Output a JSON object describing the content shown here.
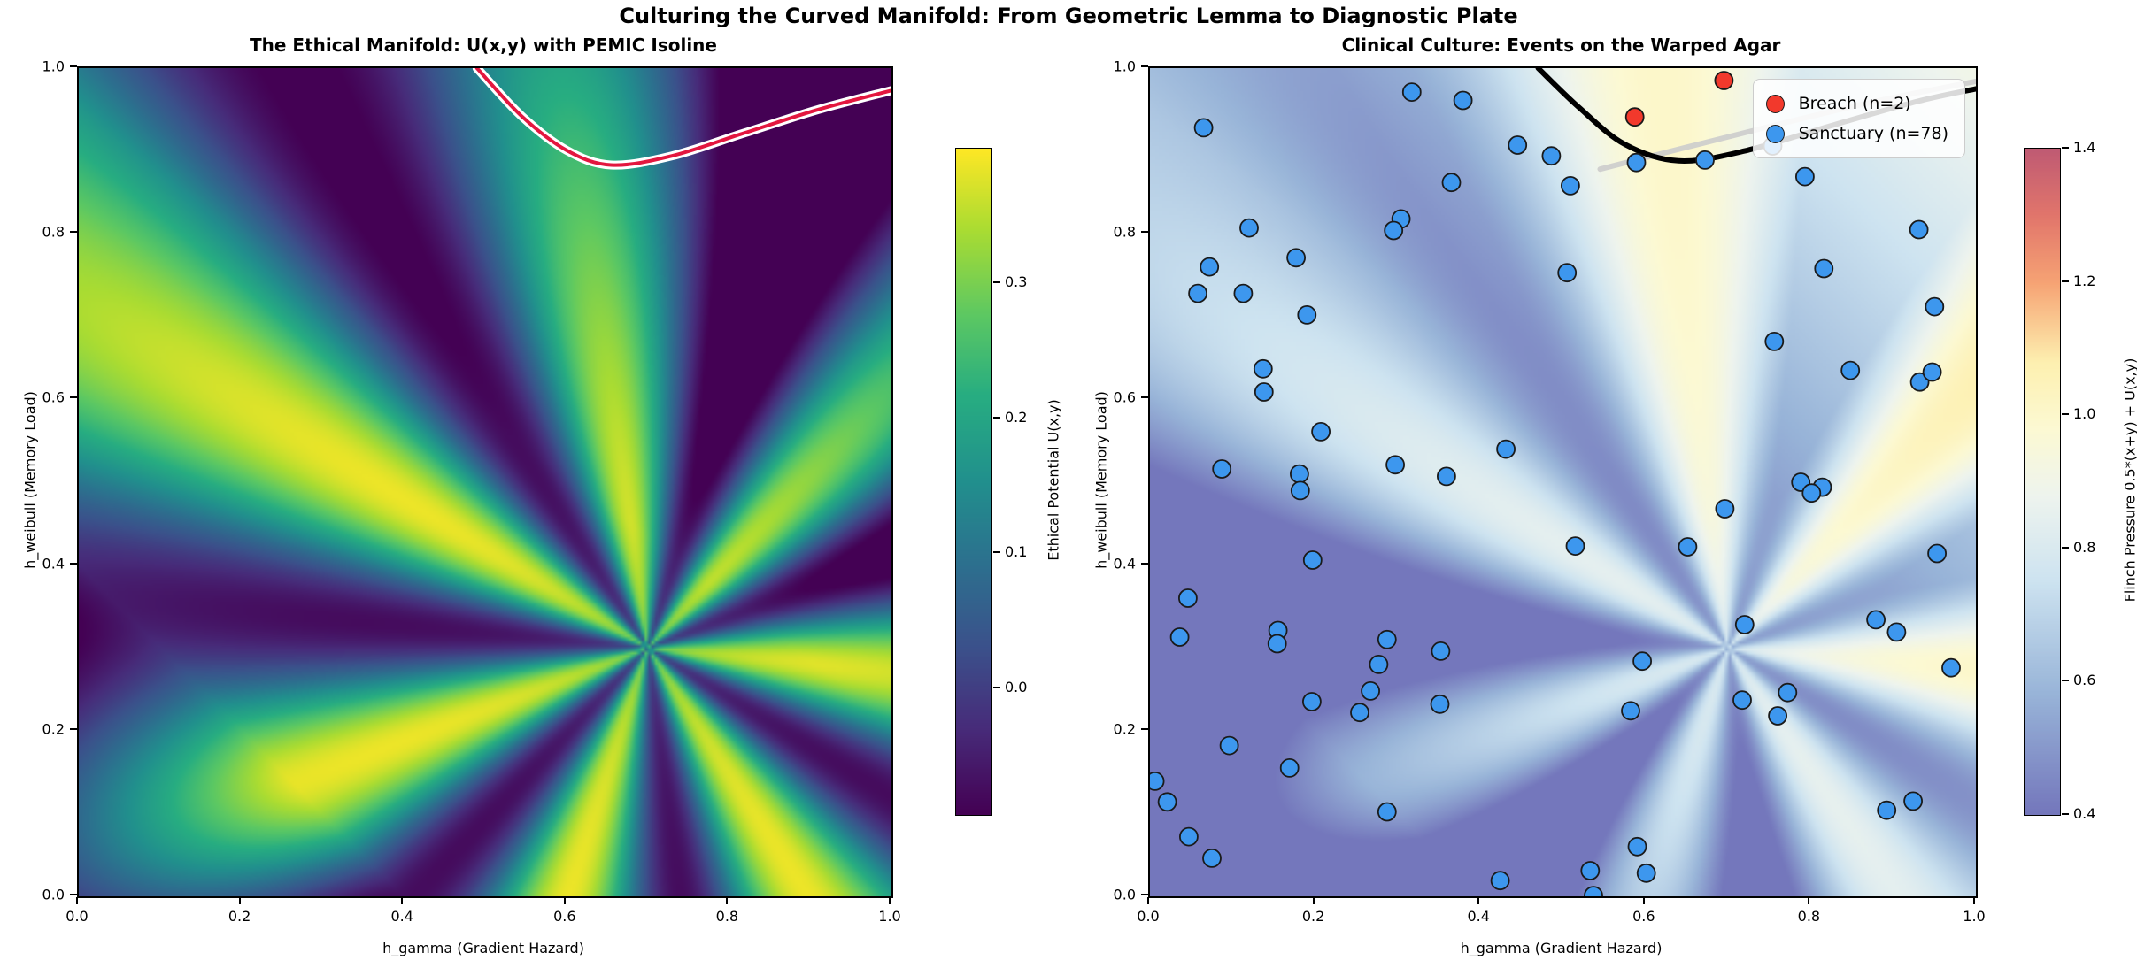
{
  "suptitle": "Culturing the Curved Manifold: From Geometric Lemma to Diagnostic Plate",
  "chart_data": [
    {
      "type": "heatmap",
      "title": "The Ethical Manifold: U(x,y) with PEMIC Isoline",
      "xlabel": "h_gamma (Gradient Hazard)",
      "ylabel": "h_weibull (Memory Load)",
      "xlim": [
        0.0,
        1.0
      ],
      "ylim": [
        0.0,
        1.0
      ],
      "xtick_values": [
        0.0,
        0.2,
        0.4,
        0.6,
        0.8,
        1.0
      ],
      "xtick_labels": [
        "0.0",
        "0.2",
        "0.4",
        "0.6",
        "0.8",
        "1.0"
      ],
      "ytick_values": [
        0.0,
        0.2,
        0.4,
        0.6,
        0.8,
        1.0
      ],
      "ytick_labels": [
        "0.0",
        "0.2",
        "0.4",
        "0.6",
        "0.8",
        "1.0"
      ],
      "grid": false,
      "colormap": "viridis",
      "colorbar": {
        "label": "Ethical Potential U(x,y)",
        "tick_values": [
          0.0,
          0.1,
          0.2,
          0.3
        ],
        "tick_labels": [
          "0.0",
          "0.1",
          "0.2",
          "0.3"
        ],
        "vmin": -0.094,
        "vmax": 0.4
      },
      "field": {
        "description": "Angular singularity U(x,y) with 7 alternating bright/dark lobes",
        "singularity_center": [
          0.7,
          0.3
        ],
        "lobes": 7,
        "phase": 0.63,
        "value_range": [
          -0.094,
          0.4
        ]
      },
      "isoline": {
        "name": "PEMIC isoline",
        "halo_color": "#ffffff",
        "line_color": "#e3173f",
        "points": [
          [
            0.49,
            1.0
          ],
          [
            0.545,
            0.942
          ],
          [
            0.6,
            0.901
          ],
          [
            0.655,
            0.883
          ],
          [
            0.73,
            0.894
          ],
          [
            0.82,
            0.922
          ],
          [
            0.91,
            0.95
          ],
          [
            1.0,
            0.973
          ]
        ]
      }
    },
    {
      "type": "heatmap+scatter",
      "title": "Clinical Culture: Events on the Warped Agar",
      "xlabel": "h_gamma (Gradient Hazard)",
      "ylabel": "h_weibull (Memory Load)",
      "xlim": [
        0.0,
        1.0
      ],
      "ylim": [
        0.0,
        1.0
      ],
      "xtick_values": [
        0.0,
        0.2,
        0.4,
        0.6,
        0.8,
        1.0
      ],
      "xtick_labels": [
        "0.0",
        "0.2",
        "0.4",
        "0.6",
        "0.8",
        "1.0"
      ],
      "ytick_values": [
        0.0,
        0.2,
        0.4,
        0.6,
        0.8,
        1.0
      ],
      "ytick_labels": [
        "0.0",
        "0.2",
        "0.4",
        "0.6",
        "0.8",
        "1.0"
      ],
      "grid": false,
      "colormap": "purple-yellow-crimson diverging",
      "colorbar": {
        "label": "Flinch Pressure 0.5*(x+y) + U(x,y)",
        "tick_values": [
          0.4,
          0.6,
          0.8,
          1.0,
          1.2,
          1.4
        ],
        "tick_labels": [
          "0.4",
          "0.6",
          "0.8",
          "1.0",
          "1.2",
          "1.4"
        ],
        "vmin": 0.4,
        "vmax": 1.4
      },
      "field": {
        "description": "Flinch pressure 0.5*(x+y) + U(x,y) on warped agar",
        "singularity_center": [
          0.7,
          0.3
        ],
        "value_range": [
          0.4,
          1.4
        ]
      },
      "contours": [
        {
          "name": "gray-isoline",
          "color": "rgba(204,204,204,0.9)",
          "width": 6,
          "points": [
            [
              0.545,
              0.878
            ],
            [
              0.72,
              0.922
            ],
            [
              0.87,
              0.958
            ],
            [
              1.0,
              0.984
            ]
          ]
        },
        {
          "name": "black-threshold-contour",
          "color": "#000000",
          "width": 6,
          "points": [
            [
              0.47,
              1.0
            ],
            [
              0.52,
              0.952
            ],
            [
              0.575,
              0.908
            ],
            [
              0.64,
              0.888
            ],
            [
              0.72,
              0.9
            ],
            [
              0.83,
              0.932
            ],
            [
              0.93,
              0.96
            ],
            [
              1.0,
              0.975
            ]
          ]
        }
      ],
      "series": [
        {
          "name": "Breach (n=2)",
          "color": "#f2392c",
          "marker": "circle",
          "count": 2,
          "points": [
            [
              0.587,
              0.941
            ],
            [
              0.695,
              0.985
            ]
          ]
        },
        {
          "name": "Sanctuary (n=78)",
          "color": "#3d97ee",
          "marker": "circle",
          "count": 78,
          "points": [
            [
              0.317,
              0.971
            ],
            [
              0.379,
              0.961
            ],
            [
              0.065,
              0.928
            ],
            [
              0.445,
              0.907
            ],
            [
              0.365,
              0.862
            ],
            [
              0.304,
              0.818
            ],
            [
              0.295,
              0.804
            ],
            [
              0.12,
              0.807
            ],
            [
              0.177,
              0.771
            ],
            [
              0.072,
              0.76
            ],
            [
              0.058,
              0.728
            ],
            [
              0.113,
              0.728
            ],
            [
              0.19,
              0.702
            ],
            [
              0.137,
              0.637
            ],
            [
              0.138,
              0.609
            ],
            [
              0.207,
              0.561
            ],
            [
              0.754,
              0.906
            ],
            [
              0.486,
              0.894
            ],
            [
              0.589,
              0.886
            ],
            [
              0.672,
              0.889
            ],
            [
              0.793,
              0.869
            ],
            [
              0.509,
              0.858
            ],
            [
              0.931,
              0.805
            ],
            [
              0.505,
              0.753
            ],
            [
              0.816,
              0.758
            ],
            [
              0.95,
              0.712
            ],
            [
              0.756,
              0.67
            ],
            [
              0.848,
              0.635
            ],
            [
              0.932,
              0.621
            ],
            [
              0.947,
              0.633
            ],
            [
              0.431,
              0.54
            ],
            [
              0.087,
              0.516
            ],
            [
              0.181,
              0.51
            ],
            [
              0.297,
              0.521
            ],
            [
              0.359,
              0.507
            ],
            [
              0.182,
              0.49
            ],
            [
              0.197,
              0.406
            ],
            [
              0.046,
              0.36
            ],
            [
              0.036,
              0.313
            ],
            [
              0.155,
              0.321
            ],
            [
              0.154,
              0.305
            ],
            [
              0.287,
              0.31
            ],
            [
              0.277,
              0.28
            ],
            [
              0.267,
              0.248
            ],
            [
              0.254,
              0.222
            ],
            [
              0.196,
              0.235
            ],
            [
              0.352,
              0.296
            ],
            [
              0.351,
              0.232
            ],
            [
              0.096,
              0.182
            ],
            [
              0.169,
              0.155
            ],
            [
              0.006,
              0.139
            ],
            [
              0.021,
              0.114
            ],
            [
              0.287,
              0.102
            ],
            [
              0.047,
              0.072
            ],
            [
              0.075,
              0.046
            ],
            [
              0.424,
              0.019
            ],
            [
              0.788,
              0.5
            ],
            [
              0.814,
              0.494
            ],
            [
              0.801,
              0.487
            ],
            [
              0.696,
              0.468
            ],
            [
              0.515,
              0.423
            ],
            [
              0.651,
              0.422
            ],
            [
              0.953,
              0.414
            ],
            [
              0.879,
              0.334
            ],
            [
              0.904,
              0.319
            ],
            [
              0.72,
              0.328
            ],
            [
              0.596,
              0.284
            ],
            [
              0.97,
              0.276
            ],
            [
              0.772,
              0.246
            ],
            [
              0.717,
              0.237
            ],
            [
              0.76,
              0.218
            ],
            [
              0.582,
              0.224
            ],
            [
              0.892,
              0.104
            ],
            [
              0.924,
              0.115
            ],
            [
              0.59,
              0.06
            ],
            [
              0.533,
              0.031
            ],
            [
              0.601,
              0.028
            ],
            [
              0.537,
              0.001
            ]
          ]
        }
      ],
      "legend": {
        "position": "upper right",
        "items": [
          "Breach (n=2)",
          "Sanctuary (n=78)"
        ]
      }
    }
  ]
}
